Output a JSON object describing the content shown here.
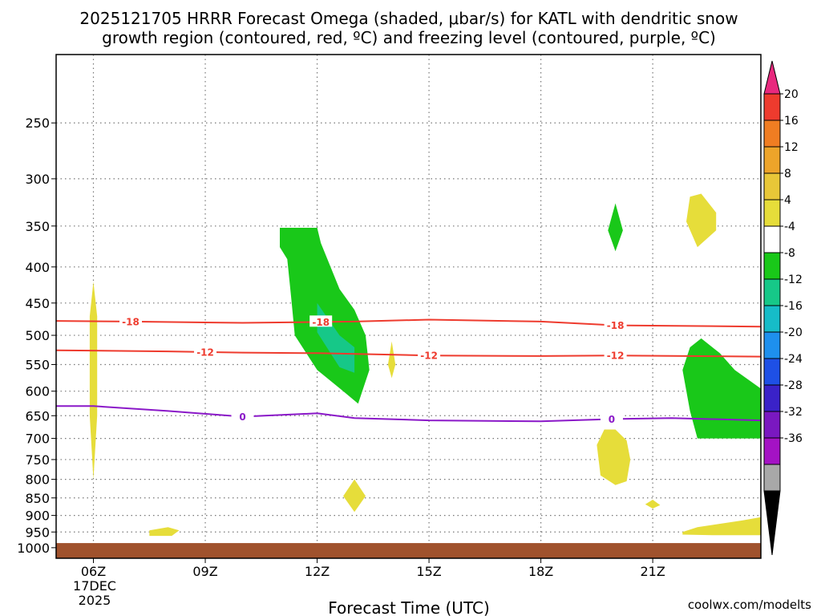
{
  "chart_data": {
    "type": "heatmap",
    "title_lines": [
      "2025121705 HRRR Forecast Omega (shaded, μbar/s) for KATL with dendritic snow",
      "growth region (contoured, red, ºC) and freezing level (contoured, purple, ºC)"
    ],
    "xlabel": "Forecast Time (UTC)",
    "ylabel": "",
    "x_ticks": [
      "06Z",
      "09Z",
      "12Z",
      "15Z",
      "18Z",
      "21Z"
    ],
    "x_tick_hours": [
      6,
      9,
      12,
      15,
      18,
      21
    ],
    "x_date_labels": [
      "17DEC",
      "2025"
    ],
    "xlim_hours": [
      5,
      23.9
    ],
    "y_ticks": [
      250,
      300,
      350,
      400,
      450,
      500,
      550,
      600,
      650,
      700,
      750,
      800,
      850,
      900,
      950,
      1000
    ],
    "ylim_hpa": [
      1035,
      200
    ],
    "y_scale": "log-pressure",
    "grid": true,
    "colorbar": {
      "labels": [
        "20",
        "16",
        "12",
        "8",
        "4",
        "-4",
        "-8",
        "-12",
        "-16",
        "-20",
        "-24",
        "-28",
        "-32",
        "-36"
      ],
      "colors": [
        "#e8297e",
        "#ee3b2e",
        "#f07d22",
        "#eda42a",
        "#e8c738",
        "#e6dd3a",
        "#ffffff",
        "#19c819",
        "#16c888",
        "#16bcc8",
        "#1e90ee",
        "#1e50e6",
        "#3a22c8",
        "#7a18c0",
        "#a412c4",
        "#a8a8a8",
        "#000000"
      ]
    },
    "shading": [
      {
        "color": "#e6dd3a",
        "range": "4 to 8",
        "points": [
          [
            6.0,
            420
          ],
          [
            6.1,
            470
          ],
          [
            6.1,
            650
          ],
          [
            6.0,
            800
          ],
          [
            5.9,
            650
          ],
          [
            5.9,
            470
          ]
        ]
      },
      {
        "color": "#e6dd3a",
        "range": "4 to 8",
        "points": [
          [
            7.5,
            945
          ],
          [
            8.0,
            935
          ],
          [
            8.3,
            945
          ],
          [
            8.1,
            962
          ],
          [
            7.5,
            962
          ]
        ]
      },
      {
        "color": "#e6dd3a",
        "range": "4 to 8",
        "points": [
          [
            13.0,
            800
          ],
          [
            13.3,
            845
          ],
          [
            13.0,
            890
          ],
          [
            12.7,
            845
          ]
        ]
      },
      {
        "color": "#e6dd3a",
        "range": "4 to 8",
        "points": [
          [
            14.0,
            510
          ],
          [
            14.1,
            550
          ],
          [
            14.0,
            575
          ],
          [
            13.9,
            550
          ]
        ]
      },
      {
        "color": "#e6dd3a",
        "range": "4 to 8",
        "points": [
          [
            20.0,
            680
          ],
          [
            20.3,
            705
          ],
          [
            20.4,
            750
          ],
          [
            20.3,
            805
          ],
          [
            20.0,
            815
          ],
          [
            19.6,
            790
          ],
          [
            19.5,
            715
          ],
          [
            19.7,
            680
          ]
        ]
      },
      {
        "color": "#e6dd3a",
        "range": "4 to 8",
        "points": [
          [
            21.0,
            855
          ],
          [
            21.2,
            870
          ],
          [
            21.0,
            880
          ],
          [
            20.8,
            868
          ]
        ]
      },
      {
        "color": "#e6dd3a",
        "range": "4 to 8",
        "points": [
          [
            22.3,
            315
          ],
          [
            22.7,
            335
          ],
          [
            22.7,
            355
          ],
          [
            22.2,
            375
          ],
          [
            21.9,
            345
          ],
          [
            22.0,
            318
          ]
        ]
      },
      {
        "color": "#e6dd3a",
        "range": "4 to 8",
        "points": [
          [
            21.8,
            950
          ],
          [
            22.2,
            935
          ],
          [
            23.4,
            915
          ],
          [
            23.9,
            905
          ],
          [
            23.9,
            960
          ],
          [
            22.6,
            960
          ],
          [
            21.8,
            958
          ]
        ]
      },
      {
        "color": "#19c819",
        "range": "-4 to -8",
        "points": [
          [
            11.0,
            352
          ],
          [
            12.0,
            352
          ],
          [
            12.1,
            370
          ],
          [
            12.6,
            430
          ],
          [
            13.0,
            460
          ],
          [
            13.3,
            500
          ],
          [
            13.4,
            560
          ],
          [
            13.1,
            625
          ],
          [
            12.7,
            600
          ],
          [
            12.0,
            560
          ],
          [
            11.4,
            500
          ],
          [
            11.3,
            440
          ],
          [
            11.2,
            390
          ],
          [
            11.0,
            375
          ]
        ]
      },
      {
        "color": "#16c888",
        "range": "-8 to -12",
        "points": [
          [
            12.0,
            450
          ],
          [
            12.6,
            500
          ],
          [
            13.0,
            520
          ],
          [
            13.0,
            565
          ],
          [
            12.6,
            555
          ],
          [
            12.0,
            495
          ]
        ]
      },
      {
        "color": "#19c819",
        "range": "-4 to -8",
        "points": [
          [
            20.0,
            325
          ],
          [
            20.2,
            355
          ],
          [
            20.0,
            380
          ],
          [
            19.8,
            355
          ]
        ]
      },
      {
        "color": "#19c819",
        "range": "-4 to -8",
        "points": [
          [
            22.0,
            520
          ],
          [
            22.3,
            505
          ],
          [
            22.8,
            530
          ],
          [
            23.2,
            560
          ],
          [
            23.9,
            595
          ],
          [
            23.9,
            700
          ],
          [
            22.2,
            700
          ],
          [
            22.0,
            640
          ],
          [
            21.8,
            560
          ]
        ]
      }
    ],
    "contours": [
      {
        "label": "-18",
        "color": "#ee3b2e",
        "x": [
          5.0,
          7.0,
          10.0,
          13.0,
          15.0,
          18.0,
          20.0,
          23.9
        ],
        "y": [
          477,
          478,
          480,
          478,
          475,
          478,
          484,
          486
        ],
        "label_x": [
          7.0,
          12.1,
          20.0
        ]
      },
      {
        "label": "-12",
        "color": "#ee3b2e",
        "x": [
          5.0,
          8.0,
          10.0,
          12.0,
          15.0,
          18.0,
          20.0,
          23.9
        ],
        "y": [
          525,
          527,
          529,
          530,
          534,
          535,
          534,
          536
        ],
        "label_x": [
          9.0,
          15.0,
          20.0
        ]
      },
      {
        "label": "0",
        "color": "#8a18c8",
        "x": [
          5.0,
          6.0,
          8.0,
          10.0,
          12.0,
          13.0,
          15.0,
          18.0,
          20.0,
          21.5,
          23.9
        ],
        "y": [
          630,
          630,
          640,
          652,
          645,
          655,
          660,
          662,
          657,
          655,
          660
        ],
        "label_x": [
          10.0,
          19.9
        ]
      }
    ],
    "ground": {
      "color": "#a0522d",
      "top_hpa": 985
    }
  },
  "watermark": "coolwx.com/modelts",
  "colors": {
    "frame": "#000000",
    "grid": "#777777",
    "watermark": "#e03a3a"
  }
}
